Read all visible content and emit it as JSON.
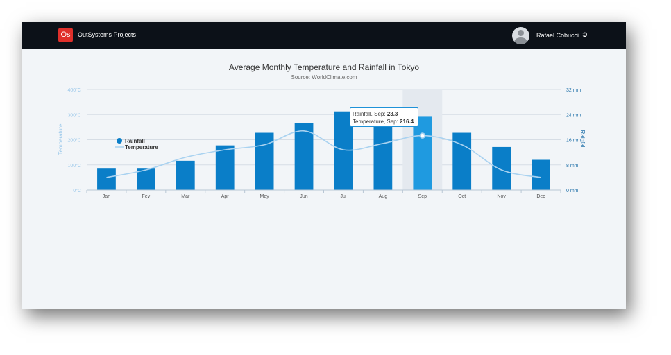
{
  "app": {
    "logo_text": "Os",
    "title": "OutSystems Projects"
  },
  "user": {
    "name": "Rafael Cobucci",
    "avatar_icon": "user-avatar-icon",
    "logout_icon": "sign-out-icon"
  },
  "tooltip": {
    "rain_prefix": "Rainfall, Sep: ",
    "rain_value": "23.3",
    "temp_prefix": "Temperature, Sep: ",
    "temp_value": "216.4"
  },
  "chart_data": {
    "type": "bar",
    "title": "Average Monthly Temperature and Rainfall in Tokyo",
    "subtitle": "Source: WorldClimate.com",
    "categories": [
      "Jan",
      "Fev",
      "Mar",
      "Apr",
      "May",
      "Jun",
      "Jul",
      "Aug",
      "Sep",
      "Oct",
      "Nov",
      "Dec"
    ],
    "series": [
      {
        "name": "Rainfall",
        "type": "bar",
        "axis": "right",
        "values": [
          6.8,
          6.8,
          9.3,
          14.2,
          18.2,
          21.4,
          25.0,
          22.0,
          23.3,
          18.2,
          13.7,
          9.6
        ],
        "color": "#0a7ec8",
        "highlight_color": "#1f9ae0"
      },
      {
        "name": "Temperature",
        "type": "spline",
        "axis": "left",
        "values": [
          50,
          80,
          130,
          160,
          180,
          235,
          160,
          185,
          216.4,
          180,
          80,
          50
        ],
        "color": "#a9d2f0"
      }
    ],
    "yaxis_left": {
      "label": "Temperature",
      "ticks": [
        "0°C",
        "100°C",
        "200°C",
        "300°C",
        "400°C"
      ],
      "range": [
        0,
        400
      ]
    },
    "yaxis_right": {
      "label": "Rainfall",
      "ticks": [
        "0 mm",
        "8 mm",
        "16 mm",
        "24 mm",
        "32 mm"
      ],
      "range": [
        0,
        32
      ]
    },
    "highlighted_category": "Sep",
    "legend_position": "top-left",
    "grid": true
  }
}
